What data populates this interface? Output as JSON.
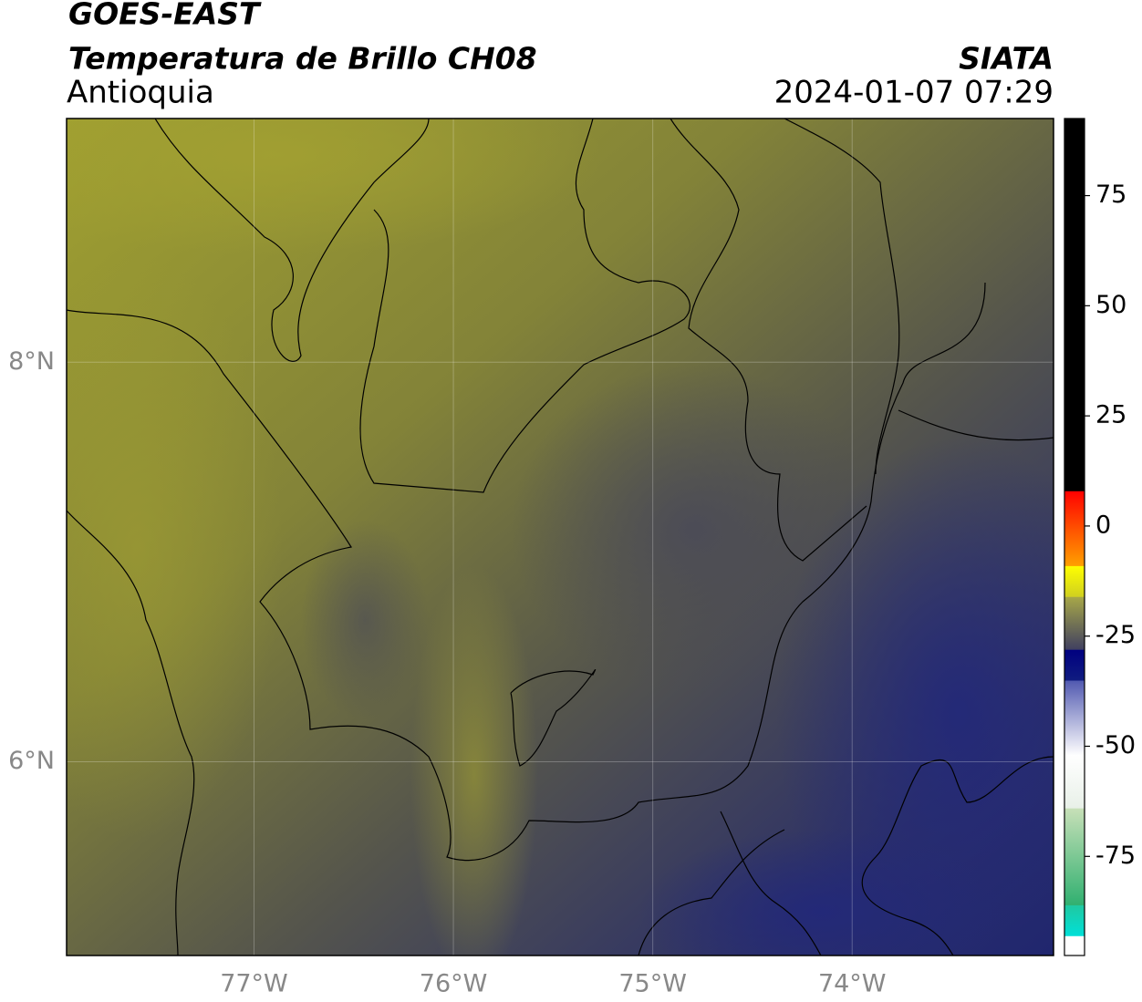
{
  "header": {
    "title": "GOES-EAST",
    "subtitle": "Temperatura de Brillo CH08",
    "region": "Antioquia",
    "source": "SIATA",
    "datetime": "2024-01-07 07:29"
  },
  "map": {
    "xlim": [
      -77.94,
      -72.99
    ],
    "ylim": [
      5.03,
      9.22
    ],
    "xticks": [
      {
        "value": -77,
        "label": "77°W"
      },
      {
        "value": -76,
        "label": "76°W"
      },
      {
        "value": -75,
        "label": "75°W"
      },
      {
        "value": -74,
        "label": "74°W"
      }
    ],
    "yticks": [
      {
        "value": 8,
        "label": "8°N"
      },
      {
        "value": 6,
        "label": "6°N"
      }
    ],
    "grid": true
  },
  "colorbar": {
    "lim": [
      -97.5,
      92.5
    ],
    "ticks": [
      75,
      50,
      25,
      0,
      -25,
      -50,
      -75
    ],
    "segments": [
      {
        "range": [
          -97.5,
          -93
        ],
        "colors": [
          "#ffffff",
          "#ffffff"
        ]
      },
      {
        "range": [
          -93,
          -86
        ],
        "colors": [
          "#00e0d8",
          "#20c8a0"
        ]
      },
      {
        "range": [
          -86,
          -64
        ],
        "colors": [
          "#30b070",
          "#c8e0b8"
        ]
      },
      {
        "range": [
          -64,
          -52
        ],
        "colors": [
          "#e8f0e8",
          "#ffffff"
        ]
      },
      {
        "range": [
          -52,
          -35
        ],
        "colors": [
          "#ffffff",
          "#5058b0"
        ]
      },
      {
        "range": [
          -35,
          -28
        ],
        "colors": [
          "#101c80",
          "#000080"
        ]
      },
      {
        "range": [
          -28,
          -16
        ],
        "colors": [
          "#404060",
          "#a8a848"
        ]
      },
      {
        "range": [
          -16,
          -9
        ],
        "colors": [
          "#d0d020",
          "#ffff00"
        ]
      },
      {
        "range": [
          -9,
          8
        ],
        "colors": [
          "#ffa000",
          "#ff0000"
        ]
      },
      {
        "range": [
          8,
          92.5
        ],
        "colors": [
          "#000000",
          "#000000"
        ]
      }
    ]
  }
}
